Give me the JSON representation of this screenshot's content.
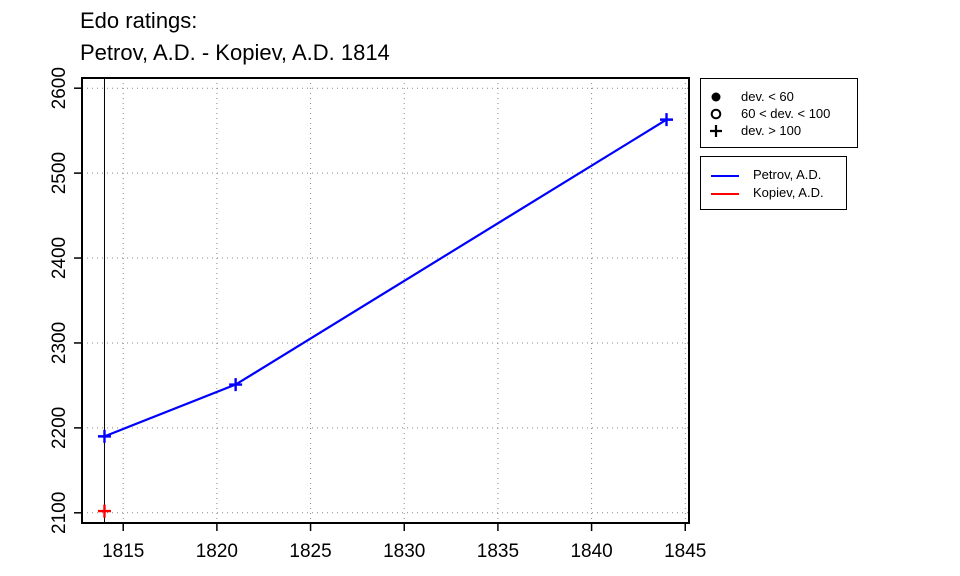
{
  "title_lines": [
    "Edo ratings:",
    "Petrov, A.D. - Kopiev, A.D. 1814"
  ],
  "legend_deviation": [
    {
      "symbol": "filled-circle",
      "label": "dev. < 60"
    },
    {
      "symbol": "open-circle",
      "label": "60 < dev. < 100"
    },
    {
      "symbol": "plus",
      "label": "dev. > 100"
    }
  ],
  "legend_players": [
    {
      "name": "Petrov, A.D.",
      "color": "#0000ff"
    },
    {
      "name": "Kopiev, A.D.",
      "color": "#ff0000"
    }
  ],
  "chart_data": {
    "type": "line",
    "title": "Edo ratings:\nPetrov, A.D. - Kopiev, A.D. 1814",
    "xlabel": "",
    "ylabel": "",
    "xlim": [
      1812.8,
      1845.2
    ],
    "ylim": [
      2088,
      2612
    ],
    "x_ticks": [
      1815,
      1820,
      1825,
      1830,
      1835,
      1840,
      1845
    ],
    "y_ticks": [
      2100,
      2200,
      2300,
      2400,
      2500,
      2600
    ],
    "grid": true,
    "marker_line_x": 1814,
    "legend_position": "outside-right",
    "series": [
      {
        "name": "Petrov, A.D.",
        "color": "#0000ff",
        "points": [
          {
            "x": 1814,
            "y": 2190
          },
          {
            "x": 1821,
            "y": 2251
          },
          {
            "x": 1844,
            "y": 2563
          }
        ]
      },
      {
        "name": "Kopiev, A.D.",
        "color": "#ff0000",
        "points": [
          {
            "x": 1814,
            "y": 2102
          }
        ]
      }
    ]
  }
}
